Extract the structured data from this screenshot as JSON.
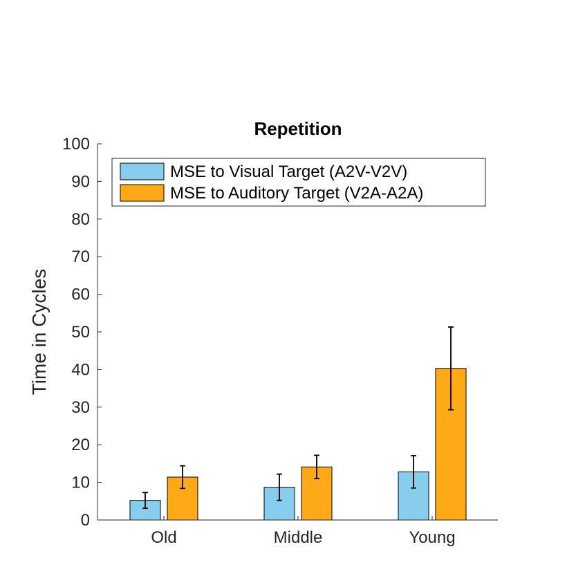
{
  "chart_data": {
    "type": "bar",
    "title": "Repetition",
    "xlabel": "",
    "ylabel": "Time in Cycles",
    "ylim": [
      0,
      100
    ],
    "yticks": [
      0,
      10,
      20,
      30,
      40,
      50,
      60,
      70,
      80,
      90,
      100
    ],
    "categories": [
      "Old",
      "Middle",
      "Young"
    ],
    "series": [
      {
        "name": "MSE to Visual Target (A2V-V2V)",
        "color": "#87ceee",
        "values": [
          5.2,
          8.7,
          12.8
        ],
        "error": [
          2.1,
          3.5,
          4.3
        ]
      },
      {
        "name": "MSE to Auditory Target (V2A-A2A)",
        "color": "#ffa916",
        "values": [
          11.4,
          14.1,
          40.3
        ],
        "error": [
          3.0,
          3.1,
          11.0
        ]
      }
    ],
    "legend_position": "top-left",
    "grid": false,
    "error_bars": true
  }
}
